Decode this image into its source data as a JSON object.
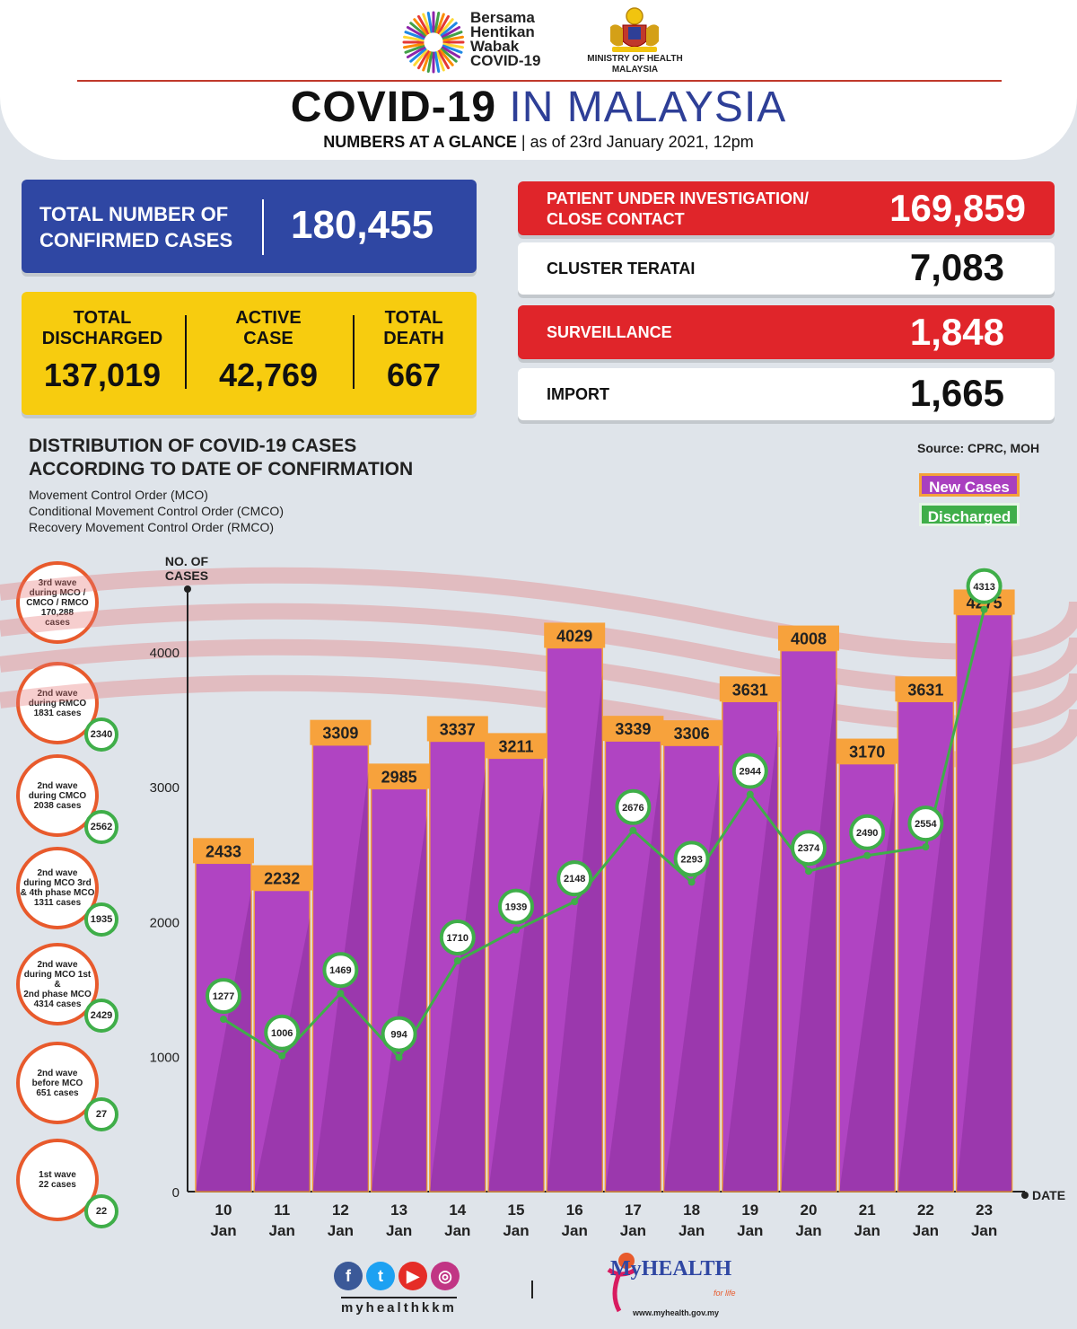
{
  "header": {
    "campaign_line1": "Bersama",
    "campaign_line2": "Hentikan",
    "campaign_line3": "Wabak",
    "campaign_line4": "COVID-19",
    "ministry_line1": "MINISTRY OF HEALTH",
    "ministry_line2": "MALAYSIA",
    "title_part1": "COVID-19",
    "title_part2": "IN MALAYSIA",
    "subtitle_bold": "NUMBERS AT A GLANCE",
    "subtitle_rest": "as of 23rd January 2021, 12pm"
  },
  "stats": {
    "total_confirmed_label_1": "TOTAL NUMBER OF",
    "total_confirmed_label_2": "CONFIRMED CASES",
    "total_confirmed_value": "180,455",
    "discharged_label_1": "TOTAL",
    "discharged_label_2": "DISCHARGED",
    "discharged_value": "137,019",
    "active_label_1": "ACTIVE",
    "active_label_2": "CASE",
    "active_value": "42,769",
    "death_label_1": "TOTAL",
    "death_label_2": "DEATH",
    "death_value": "667"
  },
  "categories": {
    "pui_label_1": "PATIENT UNDER INVESTIGATION/",
    "pui_label_2": "CLOSE CONTACT",
    "pui_value": "169,859",
    "cluster_label": "CLUSTER TERATAI",
    "cluster_value": "7,083",
    "surveillance_label": "SURVEILLANCE",
    "surveillance_value": "1,848",
    "import_label": "IMPORT",
    "import_value": "1,665"
  },
  "distribution": {
    "title_1": "DISTRIBUTION OF COVID-19 CASES",
    "title_2": "ACCORDING TO DATE OF CONFIRMATION",
    "note_1": "Movement Control Order (MCO)",
    "note_2": "Conditional Movement Control Order (CMCO)",
    "note_3": "Recovery Movement Control Order (RMCO)",
    "source": "Source: CPRC, MOH",
    "legend_new": "New Cases",
    "legend_discharged": "Discharged"
  },
  "waves": [
    {
      "l1": "3rd wave",
      "l2": "during MCO /",
      "l3": "CMCO / RMCO",
      "l4": "170,288",
      "l5": "cases",
      "badge": ""
    },
    {
      "l1": "2nd wave",
      "l2": "during RMCO",
      "l3": "1831 cases",
      "l4": "",
      "l5": "",
      "badge": "2340"
    },
    {
      "l1": "2nd wave",
      "l2": "during CMCO",
      "l3": "2038 cases",
      "l4": "",
      "l5": "",
      "badge": "2562"
    },
    {
      "l1": "2nd wave",
      "l2": "during MCO 3rd",
      "l3": "& 4th phase MCO",
      "l4": "1311 cases",
      "l5": "",
      "badge": "1935"
    },
    {
      "l1": "2nd wave",
      "l2": "during MCO 1st &",
      "l3": "2nd phase MCO",
      "l4": "4314 cases",
      "l5": "",
      "badge": "2429"
    },
    {
      "l1": "2nd wave",
      "l2": "before MCO",
      "l3": "651 cases",
      "l4": "",
      "l5": "",
      "badge": "27"
    },
    {
      "l1": "1st wave",
      "l2": "22 cases",
      "l3": "",
      "l4": "",
      "l5": "",
      "badge": "22"
    }
  ],
  "chart_data": {
    "type": "bar",
    "ylabel": "NO. OF CASES",
    "xlabel": "DATE",
    "ylim": [
      0,
      4500
    ],
    "yticks": [
      0,
      1000,
      2000,
      3000,
      4000
    ],
    "categories": [
      [
        "10",
        "Jan"
      ],
      [
        "11",
        "Jan"
      ],
      [
        "12",
        "Jan"
      ],
      [
        "13",
        "Jan"
      ],
      [
        "14",
        "Jan"
      ],
      [
        "15",
        "Jan"
      ],
      [
        "16",
        "Jan"
      ],
      [
        "17",
        "Jan"
      ],
      [
        "18",
        "Jan"
      ],
      [
        "19",
        "Jan"
      ],
      [
        "20",
        "Jan"
      ],
      [
        "21",
        "Jan"
      ],
      [
        "22",
        "Jan"
      ],
      [
        "23",
        "Jan"
      ]
    ],
    "series": [
      {
        "name": "New Cases",
        "type": "bar",
        "color": "#b044c2",
        "values": [
          2433,
          2232,
          3309,
          2985,
          3337,
          3211,
          4029,
          3339,
          3306,
          3631,
          4008,
          3170,
          3631,
          4275
        ]
      },
      {
        "name": "Discharged",
        "type": "line",
        "color": "#3fae49",
        "values": [
          1277,
          1006,
          1469,
          994,
          1710,
          1939,
          2148,
          2676,
          2293,
          2944,
          2374,
          2490,
          2554,
          4313
        ]
      }
    ]
  },
  "footer": {
    "handle": "myhealthkkm",
    "brand": "MyHEALTH",
    "brand_sub": "for life",
    "url": "www.myhealth.gov.my"
  }
}
